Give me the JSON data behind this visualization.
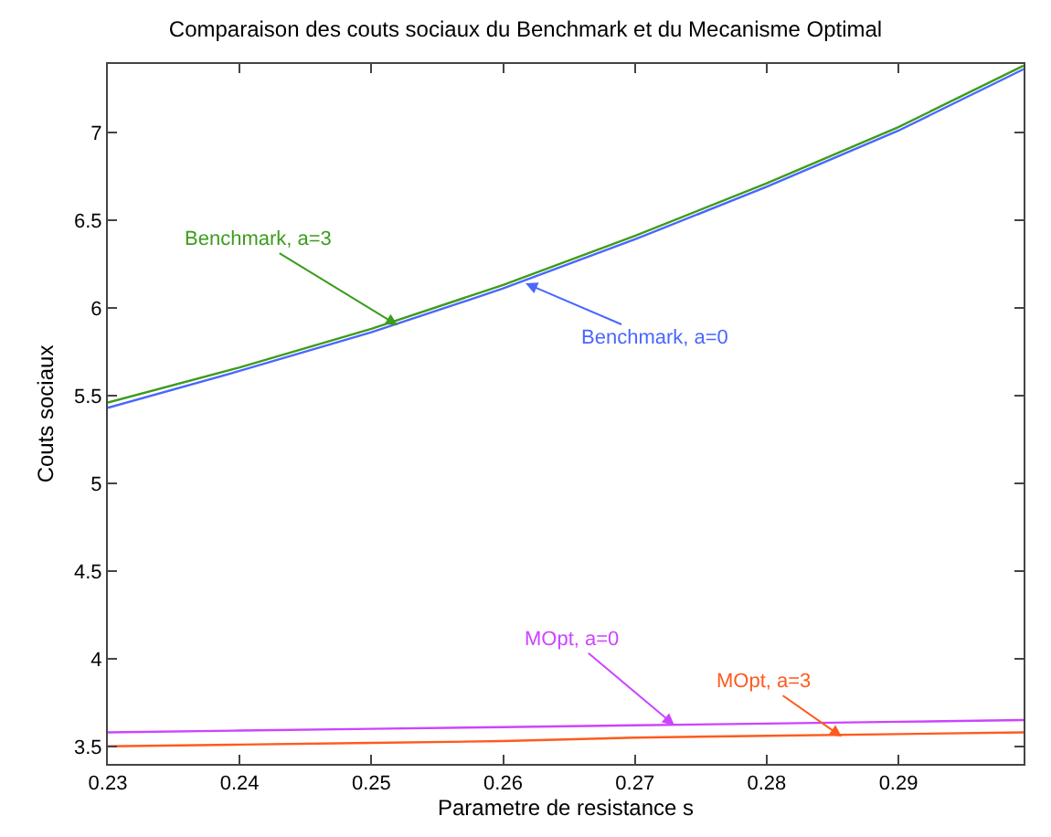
{
  "chart_data": {
    "type": "line",
    "title": "Comparaison des couts sociaux du Benchmark et du Mecanisme Optimal",
    "xlabel": "Parametre de resistance s",
    "ylabel": "Couts sociaux",
    "x": [
      0.23,
      0.24,
      0.25,
      0.26,
      0.27,
      0.28,
      0.29,
      0.2995
    ],
    "series": [
      {
        "color": "#3c9c1c",
        "values": [
          5.46,
          5.66,
          5.88,
          6.13,
          6.41,
          6.71,
          7.03,
          7.38
        ]
      },
      {
        "color": "#4a66ff",
        "values": [
          5.43,
          5.64,
          5.86,
          6.11,
          6.39,
          6.69,
          7.01,
          7.36
        ]
      },
      {
        "color": "#cc44ff",
        "values": [
          3.58,
          3.59,
          3.6,
          3.61,
          3.62,
          3.63,
          3.64,
          3.65
        ]
      },
      {
        "color": "#ff5a1e",
        "values": [
          3.5,
          3.51,
          3.52,
          3.53,
          3.55,
          3.56,
          3.57,
          3.58
        ]
      }
    ],
    "annotations": [
      {
        "text": "Benchmark, a=3",
        "x": 0.252,
        "y": 5.9
      },
      {
        "text": "Benchmark, a=0",
        "x": 0.2617,
        "y": 6.14
      },
      {
        "text": "MOpt, a=0",
        "x": 0.273,
        "y": 3.62
      },
      {
        "text": "MOpt, a=3",
        "x": 0.2857,
        "y": 3.555
      }
    ],
    "xlim": [
      0.23,
      0.2995
    ],
    "xticks": [
      0.23,
      0.24,
      0.25,
      0.26,
      0.27,
      0.28,
      0.29
    ],
    "ylim": [
      3.4,
      7.39
    ],
    "yticks": [
      3.5,
      4,
      4.5,
      5,
      5.5,
      6,
      6.5,
      7
    ],
    "marker": "none",
    "line_style": "solid"
  }
}
